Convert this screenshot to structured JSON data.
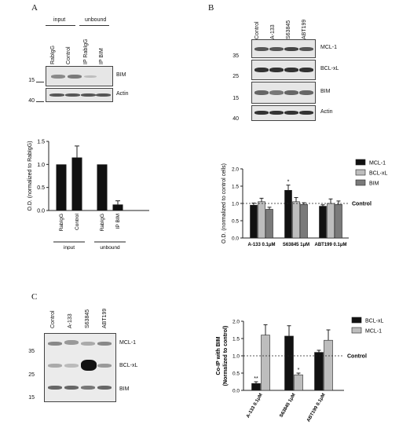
{
  "panelA": {
    "letter": "A",
    "group_input": "input",
    "group_unbound": "unbound",
    "lanes": [
      "RabIgG",
      "Control",
      "IP RabIgG",
      "IP BIM"
    ],
    "blots": [
      {
        "label": "BIM",
        "marker": "15"
      },
      {
        "label": "Actin",
        "marker": "40"
      }
    ],
    "chart_data": {
      "type": "bar",
      "ylabel": "O.D. (normalized to RabIgG)",
      "ylim": [
        0.0,
        1.5
      ],
      "yticks": [
        "0.0",
        "0.5",
        "1.0",
        "1.5"
      ],
      "categories": [
        "RabIgG",
        "Control",
        "RabIgG",
        "IP BIM"
      ],
      "values": [
        1.0,
        1.15,
        1.0,
        0.13
      ],
      "errors": [
        0.0,
        0.25,
        0.0,
        0.08
      ],
      "groups": [
        "input",
        "unbound"
      ],
      "color": "#111111"
    }
  },
  "panelB": {
    "letter": "B",
    "lanes": [
      "Control",
      "A-133",
      "S63845",
      "ABT199"
    ],
    "blots": [
      {
        "label": "MCL-1",
        "marker": "35"
      },
      {
        "label": "BCL-xL",
        "marker": "25"
      },
      {
        "label": "BIM",
        "marker": "15"
      },
      {
        "label": "Actin",
        "marker": "40"
      }
    ],
    "chart_data": {
      "type": "bar",
      "ylabel": "O.D. (normalized to control cells)",
      "ylim": [
        0.0,
        2.0
      ],
      "yticks": [
        "0.0",
        "0.5",
        "1.0",
        "1.5",
        "2.0"
      ],
      "categories": [
        "A-133 0.1μM",
        "S63845 1μM",
        "ABT199 0.1μM"
      ],
      "series": [
        {
          "name": "MCL-1",
          "color": "#111111",
          "values": [
            0.95,
            1.38,
            0.92
          ],
          "errors": [
            0.06,
            0.15,
            0.04
          ]
        },
        {
          "name": "BCL-xL",
          "color": "#bdbdbd",
          "values": [
            1.05,
            1.05,
            1.0
          ],
          "errors": [
            0.1,
            0.12,
            0.13
          ]
        },
        {
          "name": "BIM",
          "color": "#7a7a7a",
          "values": [
            0.83,
            0.97,
            0.97
          ],
          "errors": [
            0.06,
            0.05,
            0.1
          ]
        }
      ],
      "significance": [
        {
          "category": 1,
          "series": 0,
          "mark": "*"
        }
      ],
      "reference_line": {
        "value": 1.0,
        "label": "Control"
      }
    }
  },
  "panelC": {
    "letter": "C",
    "lanes": [
      "Control",
      "A-133",
      "S63845",
      "ABT199"
    ],
    "blots": [
      {
        "label": "MCL-1",
        "marker": "35"
      },
      {
        "label": "BCL-xL",
        "marker": "25"
      },
      {
        "label": "BIM",
        "marker": "15"
      }
    ],
    "chart_data": {
      "type": "bar",
      "ylabel_line1": "Co-IP with BIM",
      "ylabel_line2": "(Normalized to control)",
      "ylim": [
        0.0,
        2.0
      ],
      "yticks": [
        "0.0",
        "0.5",
        "1.0",
        "1.5",
        "2.0"
      ],
      "categories": [
        "A-133 0.1μM",
        "S63845 1μM",
        "ABT199 0.1μM"
      ],
      "series": [
        {
          "name": "BCL-xL",
          "color": "#111111",
          "values": [
            0.2,
            1.57,
            1.1
          ],
          "errors": [
            0.05,
            0.3,
            0.06
          ]
        },
        {
          "name": "MCL-1",
          "color": "#bdbdbd",
          "values": [
            1.6,
            0.45,
            1.45
          ],
          "errors": [
            0.3,
            0.05,
            0.3
          ]
        }
      ],
      "significance": [
        {
          "category": 0,
          "series": 0,
          "mark": "**"
        },
        {
          "category": 1,
          "series": 1,
          "mark": "*"
        }
      ],
      "reference_line": {
        "value": 1.0,
        "label": "Control"
      }
    }
  }
}
